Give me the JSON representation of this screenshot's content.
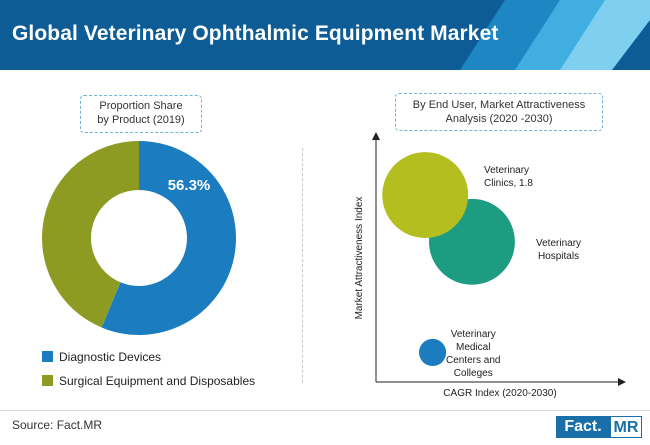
{
  "header": {
    "title": "Global Veterinary Ophthalmic Equipment Market",
    "colors": [
      "#0d5c96",
      "#1f86c4",
      "#41aee2",
      "#7fcff1"
    ]
  },
  "source": "Source: Fact.MR",
  "logo": {
    "left": "Fact.",
    "right": "MR"
  },
  "chart_data": [
    {
      "type": "pie",
      "subtype": "donut",
      "title_lines": [
        "Proportion Share",
        "by Product (2019)"
      ],
      "slices": [
        {
          "label": "Diagnostic Devices",
          "value": 56.3,
          "color": "#1b7dc0",
          "data_label": "56.3%"
        },
        {
          "label": "Surgical Equipment and Disposables",
          "value": 43.7,
          "color": "#8e9b23"
        }
      ],
      "legend_position": "bottom-left"
    },
    {
      "type": "scatter",
      "subtype": "bubble",
      "title_lines": [
        "By End User, Market Attractiveness",
        "Analysis (2020 -2030)"
      ],
      "xlabel": "CAGR Index (2020-2030)",
      "ylabel": "Market Attractiveness Index",
      "xlim": [
        0,
        10
      ],
      "ylim": [
        0,
        10
      ],
      "grid": false,
      "points": [
        {
          "label_lines": [
            "Veterinary",
            "Clinics, 1.8"
          ],
          "x": 2.0,
          "y": 7.6,
          "size": 1.8,
          "color": "#b4bf1f"
        },
        {
          "label_lines": [
            "Veterinary",
            "Hospitals"
          ],
          "x": 3.9,
          "y": 5.7,
          "size": 1.8,
          "color": "#1e9c82"
        },
        {
          "label_lines": [
            "Veterinary",
            "Medical",
            "Centers and",
            "Colleges"
          ],
          "x": 2.3,
          "y": 1.2,
          "size": 0.18,
          "color": "#1b7dc0"
        }
      ]
    }
  ]
}
